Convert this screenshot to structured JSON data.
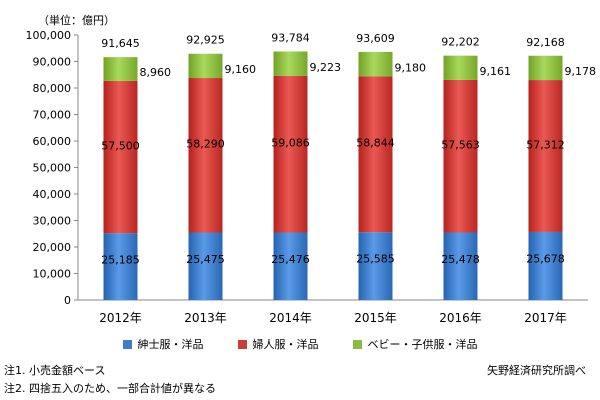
{
  "chart_data": {
    "type": "bar",
    "stacked": true,
    "unit_label": "（単位：億円）",
    "categories": [
      "2012年",
      "2013年",
      "2014年",
      "2015年",
      "2016年",
      "2017年"
    ],
    "totals": [
      91645,
      92925,
      93784,
      93609,
      92202,
      92168
    ],
    "series": [
      {
        "name": "紳士服・洋品",
        "color": "#3d7cc9",
        "values": [
          25185,
          25475,
          25476,
          25585,
          25478,
          25678
        ]
      },
      {
        "name": "婦人服・洋品",
        "color": "#cd3b36",
        "values": [
          57500,
          58290,
          59086,
          58844,
          57563,
          57312
        ]
      },
      {
        "name": "ベビー・子供服・洋品",
        "color": "#8bbb3e",
        "values": [
          8960,
          9160,
          9223,
          9180,
          9161,
          9178
        ]
      }
    ],
    "ylim": [
      0,
      100000
    ],
    "yticks": [
      0,
      10000,
      20000,
      30000,
      40000,
      50000,
      60000,
      70000,
      80000,
      90000,
      100000
    ],
    "ytick_labels": [
      "0",
      "10,000",
      "20,000",
      "30,000",
      "40,000",
      "50,000",
      "60,000",
      "70,000",
      "80,000",
      "90,000",
      "100,000"
    ],
    "total_labels": [
      "91,645",
      "92,925",
      "93,784",
      "93,609",
      "92,202",
      "92,168"
    ],
    "mens_labels": [
      "25,185",
      "25,475",
      "25,476",
      "25,585",
      "25,478",
      "25,678"
    ],
    "womens_labels": [
      "57,500",
      "58,290",
      "59,086",
      "58,844",
      "57,563",
      "57,312"
    ],
    "kids_labels": [
      "8,960",
      "9,160",
      "9,223",
      "9,180",
      "9,161",
      "9,178"
    ],
    "grid": false,
    "legend_position": "bottom"
  },
  "notes": {
    "note1": "注1. 小売金額ベース",
    "note2": "注2. 四捨五入のため、一部合計値が異なる",
    "source": "矢野経済研究所調べ"
  }
}
